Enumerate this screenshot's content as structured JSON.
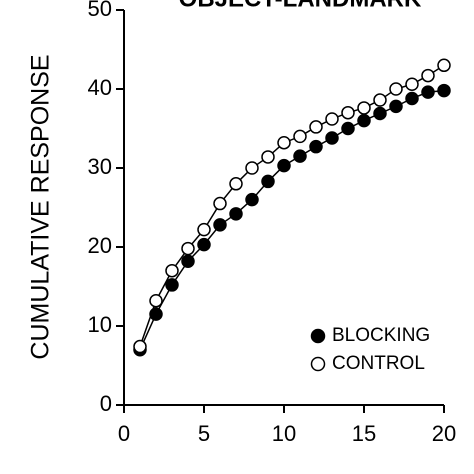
{
  "chart_data": {
    "type": "line",
    "title": "OBJECT-LANDMARK",
    "y_label": "CUMULATIVE RESPONSE",
    "x": [
      1,
      2,
      3,
      4,
      5,
      6,
      7,
      8,
      9,
      10,
      11,
      12,
      13,
      14,
      15,
      16,
      17,
      18,
      19,
      20
    ],
    "series": [
      {
        "name": "BLOCKING",
        "color": "#000000",
        "marker": "filled",
        "values": [
          7,
          11.5,
          15.2,
          18.2,
          20.3,
          22.8,
          24.2,
          26,
          28.3,
          30.3,
          31.5,
          32.7,
          33.8,
          35,
          36,
          36.9,
          37.8,
          38.8,
          39.6,
          39.8
        ]
      },
      {
        "name": "CONTROL",
        "color": "#000000",
        "marker": "open",
        "values": [
          7.4,
          13.2,
          17,
          19.8,
          22.2,
          25.5,
          28,
          30,
          31.4,
          33.2,
          34,
          35.2,
          36.2,
          37,
          37.6,
          38.6,
          40,
          40.6,
          41.7,
          43
        ]
      }
    ],
    "xlim": [
      0,
      20
    ],
    "xticks": [
      0,
      5,
      10,
      15,
      20
    ],
    "ylim": [
      0,
      50
    ],
    "yticks": [
      0,
      10,
      20,
      30,
      40,
      50
    ],
    "legend": "lower right",
    "grid": false
  }
}
